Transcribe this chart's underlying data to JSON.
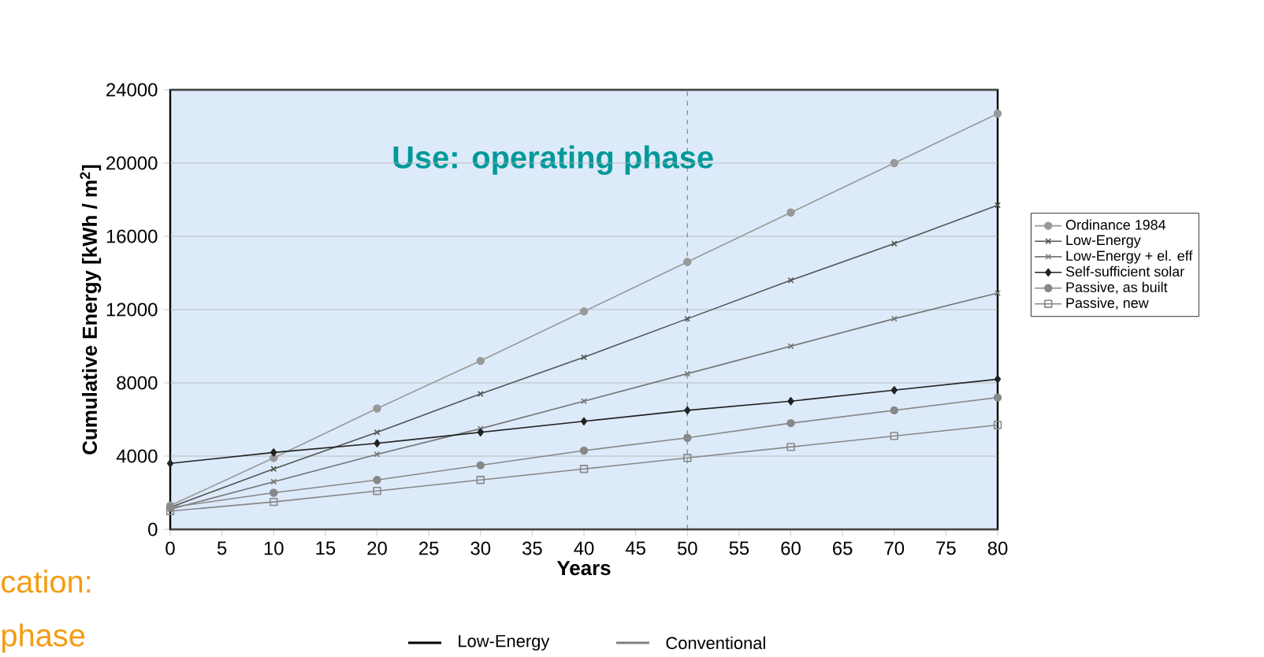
{
  "chart_data": {
    "type": "line",
    "xlabel": "Years",
    "ylabel": "Cumulative Energy [kWh / m$^{2}$]",
    "x": [
      0,
      10,
      20,
      30,
      40,
      50,
      60,
      70,
      80
    ],
    "xlim": [
      0,
      80
    ],
    "xticks": [
      0,
      5,
      10,
      15,
      20,
      25,
      30,
      35,
      40,
      45,
      50,
      55,
      60,
      65,
      70,
      75,
      80
    ],
    "ylim": [
      0,
      24000
    ],
    "yticks": [
      0,
      4000,
      8000,
      12000,
      16000,
      20000,
      24000
    ],
    "grid": "y",
    "legend": "right",
    "series": [
      {
        "name": "Ordinance 1984",
        "color": "#999999",
        "marker": "circle",
        "values": [
          1300,
          3900,
          6600,
          9200,
          11900,
          14600,
          17300,
          20000,
          22700
        ]
      },
      {
        "name": "Low-Energy",
        "color": "#555555",
        "marker": "cross",
        "values": [
          1200,
          3300,
          5300,
          7400,
          9400,
          11500,
          13600,
          15600,
          17700
        ]
      },
      {
        "name": "Low-Energy + el. eff",
        "color": "#777777",
        "marker": "cross",
        "values": [
          1100,
          2600,
          4100,
          5500,
          7000,
          8500,
          10000,
          11500,
          12900
        ]
      },
      {
        "name": "Self-sufficient solar",
        "color": "#222222",
        "marker": "diamond",
        "values": [
          3600,
          4200,
          4700,
          5300,
          5900,
          6500,
          7000,
          7600,
          8200
        ]
      },
      {
        "name": "Passive, as built",
        "color": "#888888",
        "marker": "circle",
        "values": [
          1200,
          2000,
          2700,
          3500,
          4300,
          5000,
          5800,
          6500,
          7200
        ]
      },
      {
        "name": "Passive, new",
        "color": "#888888",
        "marker": "square",
        "values": [
          1000,
          1500,
          2100,
          2700,
          3300,
          3900,
          4500,
          5100,
          5700
        ]
      }
    ],
    "ref_lines": [
      {
        "axis": "x",
        "value": 50,
        "line_style": "dashed",
        "color": "#555555"
      }
    ],
    "bands": [
      {
        "axis": "x",
        "from": 0,
        "to": 80,
        "label": "Use: operating phase",
        "color": "#ddeaf9"
      }
    ],
    "annotations": [
      "cation:",
      "phase",
      "Low-Energy",
      "Conventional"
    ]
  }
}
